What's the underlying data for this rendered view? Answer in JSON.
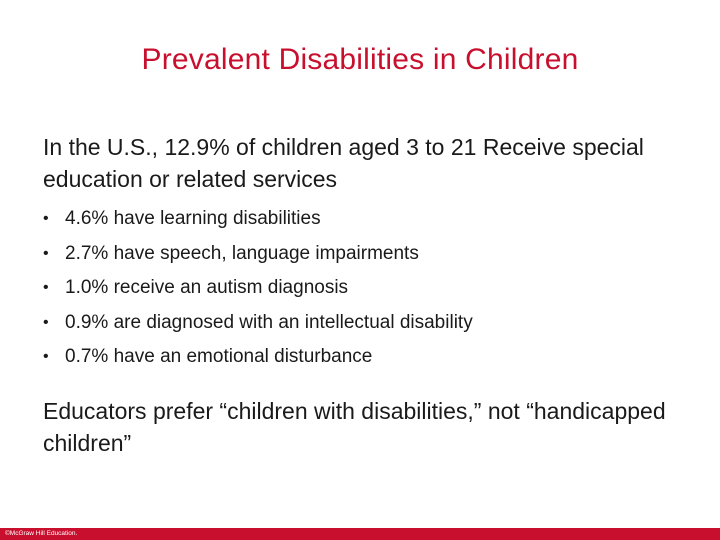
{
  "slide": {
    "title": "Prevalent Disabilities in Children",
    "intro": "In the U.S., 12.9% of children aged 3 to 21 Receive special education or related services",
    "bullet_marker": "•",
    "bullets": [
      "4.6% have learning disabilities",
      "2.7% have speech, language impairments",
      "1.0% receive an autism diagnosis",
      "0.9% are diagnosed with an intellectual disability",
      "0.7% have an emotional disturbance"
    ],
    "closing": "Educators prefer “children with disabilities,” not “handicapped children”",
    "footer": "©McGraw Hill Education."
  },
  "colors": {
    "accent": "#c8102e",
    "text": "#1a1a1a",
    "background": "#ffffff"
  }
}
